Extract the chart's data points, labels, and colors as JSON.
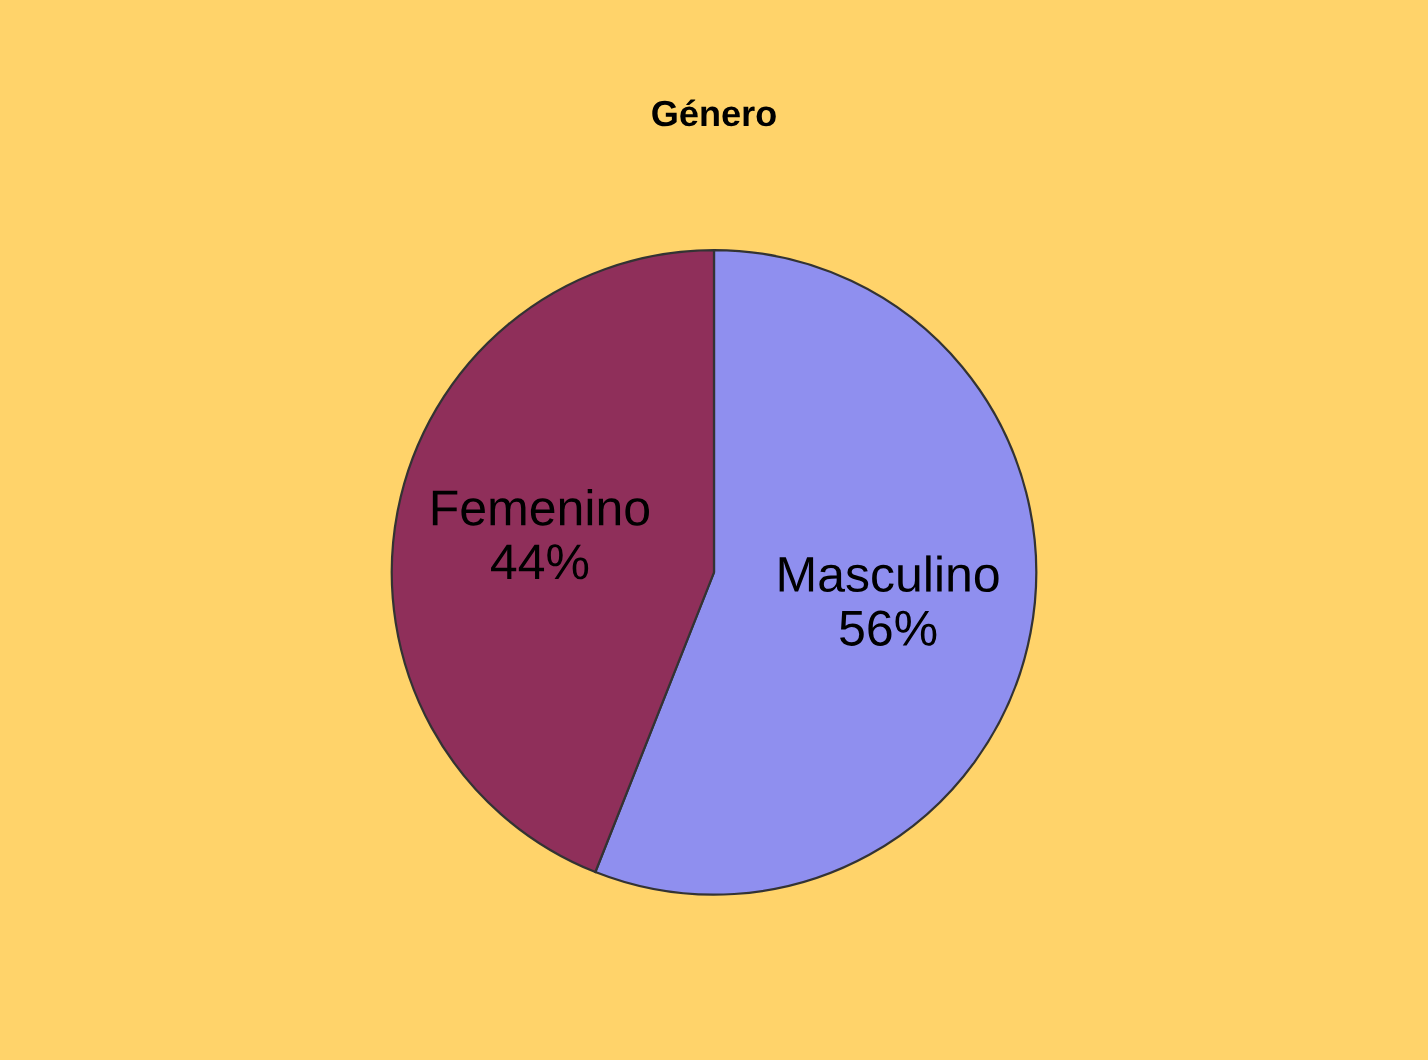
{
  "chart_data": {
    "type": "pie",
    "title": "Género",
    "categories": [
      "Masculino",
      "Femenino"
    ],
    "values": [
      56,
      44
    ],
    "colors": [
      "#8f8fef",
      "#8f2f5a"
    ],
    "value_labels": [
      "56%",
      "44%"
    ]
  }
}
